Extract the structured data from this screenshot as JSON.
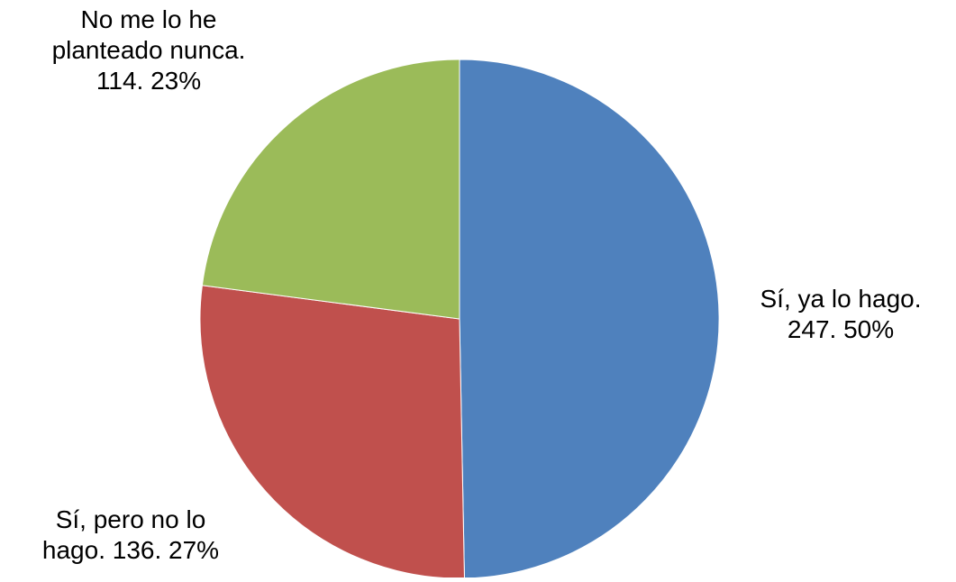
{
  "chart_data": {
    "type": "pie",
    "title": "",
    "start_angle_deg": 0,
    "direction": "clockwise",
    "slices": [
      {
        "category": "Sí, ya lo hago.",
        "value": 247,
        "percent": "50%",
        "color": "#4f81bd",
        "label_lines": [
          "Sí, ya lo hago.",
          "247. 50%"
        ]
      },
      {
        "category": "Sí, pero no lo hago.",
        "value": 136,
        "percent": "27%",
        "color": "#c0504d",
        "label_lines": [
          "Sí, pero no lo",
          "hago. 136. 27%"
        ]
      },
      {
        "category": "No me lo he planteado nunca.",
        "value": 114,
        "percent": "23%",
        "color": "#9bbb59",
        "label_lines": [
          "No me lo he",
          "planteado nunca.",
          "114. 23%"
        ]
      }
    ]
  }
}
